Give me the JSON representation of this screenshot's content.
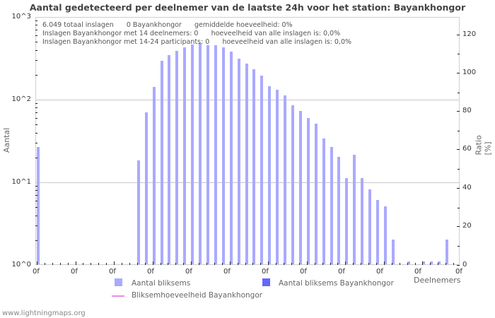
{
  "chart_data": {
    "type": "bar",
    "title": "Aantal gedetecteerd per deelnemer van de laatste 24h voor het station: Bayankhongor",
    "xlabel": "Deelnemers",
    "ylabel": "Aantal",
    "ylabel_right": "Ratio [%]",
    "yscale": "log",
    "ylim": [
      1,
      1000
    ],
    "y_ticks": [
      "10^0",
      "10^1",
      "10^2",
      "10^3"
    ],
    "y_right_ticks": [
      "0",
      "20",
      "40",
      "60",
      "80",
      "100",
      "120"
    ],
    "y_right_lim": [
      0,
      130
    ],
    "x_tick_labels": [
      "0f",
      "0f",
      "0f",
      "0f",
      "0f",
      "0f",
      "0f",
      "0f",
      "0f",
      "0f",
      "0f",
      "0f"
    ],
    "grid": true,
    "legend_position": "bottom",
    "slots": 55,
    "series": [
      {
        "name": "Aantal bliksems",
        "color": "#aaaaff",
        "values": [
          26,
          0,
          0,
          0,
          0,
          0,
          0,
          0,
          0,
          0,
          0,
          0,
          0,
          18,
          69,
          140,
          290,
          340,
          380,
          420,
          455,
          475,
          445,
          445,
          420,
          375,
          305,
          265,
          228,
          191,
          142,
          129,
          110,
          84,
          71,
          59,
          50,
          33,
          26,
          20,
          11,
          21,
          11,
          8,
          6,
          5,
          2,
          0,
          1,
          0,
          1,
          1,
          1,
          2,
          0
        ]
      },
      {
        "name": "Aantal bliksems Bayankhongor",
        "color": "#6666ff",
        "values": []
      },
      {
        "name": "Bliksemhoeveelheid Bayankhongor",
        "color": "#e88be8",
        "type": "line",
        "values": []
      }
    ]
  },
  "header": {
    "title": "Aantal gedetecteerd per deelnemer van de laatste 24h voor het station: Bayankhongor"
  },
  "axes": {
    "left_ticks": [
      {
        "label": "10^3",
        "top": 18
      },
      {
        "label": "10^2",
        "top": 135
      },
      {
        "label": "10^1",
        "top": 252
      },
      {
        "label": "10^0",
        "top": 369
      }
    ],
    "right_ticks": [
      {
        "label": "120",
        "top": 43
      },
      {
        "label": "100",
        "top": 97
      },
      {
        "label": "80",
        "top": 151
      },
      {
        "label": "60",
        "top": 205
      },
      {
        "label": "40",
        "top": 260
      },
      {
        "label": "20",
        "top": 314
      },
      {
        "label": "0",
        "top": 369
      }
    ],
    "x_labels": [
      "0f",
      "0f",
      "0f",
      "0f",
      "0f",
      "0f",
      "0f",
      "0f",
      "0f",
      "0f",
      "0f",
      "0f"
    ],
    "x_title": "Deelnemers",
    "y_title": "Aantal",
    "y_right_title": "Ratio [%]"
  },
  "info": {
    "line1": "6.049 totaal inslagen      0 Bayankhongor      gemiddelde hoeveelheid: 0%",
    "line2": "Inslagen Bayankhongor met 14 deelnemers: 0      hoeveelheid van alle inslagen is: 0,0%",
    "line3": "Inslagen Bayankhongor met 14-24 participants: 0      hoeveelheid van alle inslagen is: 0,0%"
  },
  "legend": {
    "item1": "Aantal bliksems",
    "item2": "Aantal bliksems Bayankhongor",
    "item3": "Bliksemhoeveelheid Bayankhongor"
  },
  "footer": {
    "site": "www.lightningmaps.org"
  }
}
